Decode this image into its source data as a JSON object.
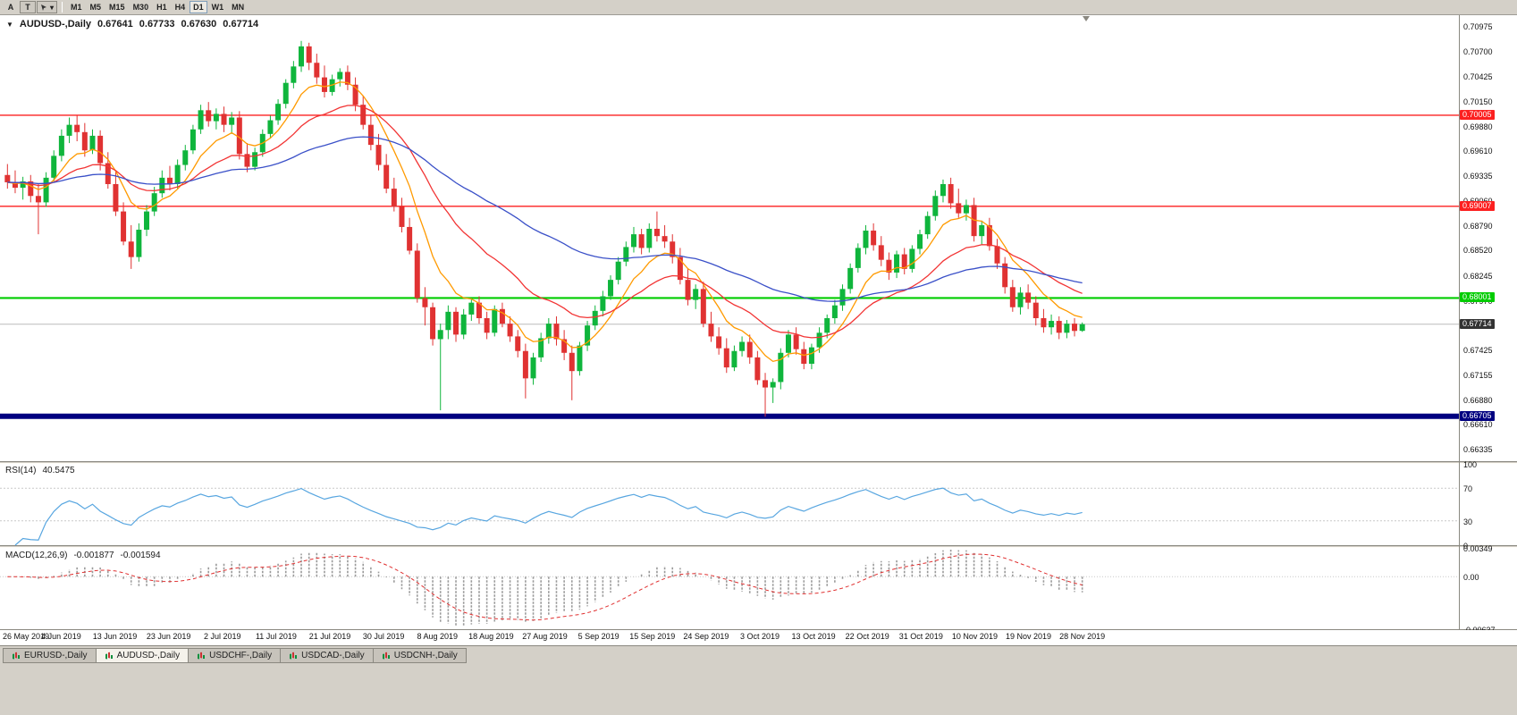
{
  "icons": {
    "title_marker": "▼",
    "dropdown_caret": "▾"
  },
  "toolbar": {
    "left_buttons": [
      {
        "label": "A",
        "name": "font-tool-button",
        "boxed": false
      },
      {
        "label": "T",
        "name": "text-tool-button",
        "boxed": true
      }
    ],
    "timeframes": [
      "M1",
      "M5",
      "M15",
      "M30",
      "H1",
      "H4",
      "D1",
      "W1",
      "MN"
    ],
    "active_timeframe": "D1"
  },
  "chart_data": {
    "type": "candlestick",
    "symbol_title": "AUDUSD-,Daily",
    "quote": {
      "open": "0.67641",
      "high": "0.67733",
      "low": "0.67630",
      "close": "0.67714"
    },
    "price_range": [
      0.66212,
      0.71102
    ],
    "price_ticks": [
      "0.70975",
      "0.70700",
      "0.70425",
      "0.70150",
      "0.69880",
      "0.69610",
      "0.69335",
      "0.69060",
      "0.68790",
      "0.68520",
      "0.68245",
      "0.67970",
      "0.67700",
      "0.67425",
      "0.67155",
      "0.66880",
      "0.66610",
      "0.66335"
    ],
    "levels": [
      {
        "value": 0.70005,
        "label": "0.70005",
        "color": "#fc2020",
        "width": 1.4,
        "type": "resistance"
      },
      {
        "value": 0.69007,
        "label": "0.69007",
        "color": "#fc2020",
        "width": 1.4,
        "type": "resistance"
      },
      {
        "value": 0.68001,
        "label": "0.68001",
        "color": "#00cc00",
        "width": 2.2,
        "type": "support"
      },
      {
        "value": 0.66705,
        "label": "0.66705",
        "color": "#000080",
        "width": 6,
        "type": "support"
      }
    ],
    "current_price": {
      "value": 0.67714,
      "label": "0.67714",
      "bg": "#333333"
    },
    "x_labels": [
      "26 May 2019",
      "4 Jun 2019",
      "13 Jun 2019",
      "23 Jun 2019",
      "2 Jul 2019",
      "11 Jul 2019",
      "21 Jul 2019",
      "30 Jul 2019",
      "8 Aug 2019",
      "18 Aug 2019",
      "27 Aug 2019",
      "5 Sep 2019",
      "15 Sep 2019",
      "24 Sep 2019",
      "3 Oct 2019",
      "13 Oct 2019",
      "22 Oct 2019",
      "31 Oct 2019",
      "10 Nov 2019",
      "19 Nov 2019",
      "28 Nov 2019"
    ],
    "colors": {
      "bull": "#0fb53c",
      "bear": "#e03232",
      "background": "#ffffff"
    },
    "moving_averages": [
      {
        "period": 8,
        "color": "#ff9a00",
        "name": "fast"
      },
      {
        "period": 21,
        "color": "#f23434",
        "name": "medium"
      },
      {
        "period": 55,
        "color": "#3a50c8",
        "name": "slow"
      }
    ],
    "candles": [
      [
        0.6935,
        0.6947,
        0.692,
        0.6927
      ],
      [
        0.6927,
        0.694,
        0.6915,
        0.6921
      ],
      [
        0.6921,
        0.6933,
        0.6908,
        0.6928
      ],
      [
        0.6928,
        0.6935,
        0.6905,
        0.6912
      ],
      [
        0.6912,
        0.6925,
        0.687,
        0.6905
      ],
      [
        0.6905,
        0.6938,
        0.69,
        0.6932
      ],
      [
        0.6932,
        0.6962,
        0.6928,
        0.6956
      ],
      [
        0.6956,
        0.6985,
        0.695,
        0.6978
      ],
      [
        0.6978,
        0.6998,
        0.697,
        0.699
      ],
      [
        0.699,
        0.7,
        0.6972,
        0.6982
      ],
      [
        0.6982,
        0.6992,
        0.6955,
        0.6962
      ],
      [
        0.6962,
        0.6985,
        0.6958,
        0.6978
      ],
      [
        0.6978,
        0.6984,
        0.694,
        0.6948
      ],
      [
        0.6948,
        0.696,
        0.692,
        0.6925
      ],
      [
        0.6925,
        0.694,
        0.689,
        0.6895
      ],
      [
        0.6895,
        0.6905,
        0.6858,
        0.6862
      ],
      [
        0.6862,
        0.688,
        0.6832,
        0.6845
      ],
      [
        0.6845,
        0.6882,
        0.684,
        0.6875
      ],
      [
        0.6875,
        0.6902,
        0.6868,
        0.6895
      ],
      [
        0.6895,
        0.6922,
        0.689,
        0.6915
      ],
      [
        0.6915,
        0.694,
        0.691,
        0.6932
      ],
      [
        0.6932,
        0.6945,
        0.6918,
        0.6925
      ],
      [
        0.6925,
        0.6952,
        0.692,
        0.6946
      ],
      [
        0.6946,
        0.6968,
        0.694,
        0.6962
      ],
      [
        0.6962,
        0.699,
        0.6958,
        0.6985
      ],
      [
        0.6985,
        0.7012,
        0.698,
        0.7006
      ],
      [
        0.7006,
        0.7015,
        0.6988,
        0.6994
      ],
      [
        0.6994,
        0.7008,
        0.6985,
        0.7002
      ],
      [
        0.7002,
        0.701,
        0.6982,
        0.699
      ],
      [
        0.699,
        0.7004,
        0.698,
        0.6998
      ],
      [
        0.6998,
        0.7005,
        0.6952,
        0.6958
      ],
      [
        0.6958,
        0.697,
        0.6938,
        0.6944
      ],
      [
        0.6944,
        0.6965,
        0.694,
        0.696
      ],
      [
        0.696,
        0.6985,
        0.6955,
        0.698
      ],
      [
        0.698,
        0.7,
        0.6975,
        0.6995
      ],
      [
        0.6995,
        0.7018,
        0.699,
        0.7013
      ],
      [
        0.7013,
        0.704,
        0.7008,
        0.7036
      ],
      [
        0.7036,
        0.706,
        0.703,
        0.7054
      ],
      [
        0.7054,
        0.7082,
        0.7048,
        0.7076
      ],
      [
        0.7076,
        0.708,
        0.705,
        0.7058
      ],
      [
        0.7058,
        0.7068,
        0.7035,
        0.7042
      ],
      [
        0.7042,
        0.7055,
        0.702,
        0.7026
      ],
      [
        0.7026,
        0.7045,
        0.7022,
        0.704
      ],
      [
        0.704,
        0.7052,
        0.7032,
        0.7048
      ],
      [
        0.7048,
        0.7055,
        0.7028,
        0.7034
      ],
      [
        0.7034,
        0.7042,
        0.7005,
        0.7012
      ],
      [
        0.7012,
        0.7022,
        0.6985,
        0.699
      ],
      [
        0.699,
        0.7,
        0.6962,
        0.6968
      ],
      [
        0.6968,
        0.698,
        0.694,
        0.6946
      ],
      [
        0.6946,
        0.6958,
        0.6915,
        0.692
      ],
      [
        0.692,
        0.6932,
        0.6895,
        0.69
      ],
      [
        0.69,
        0.691,
        0.6872,
        0.6878
      ],
      [
        0.6878,
        0.6888,
        0.6848,
        0.6852
      ],
      [
        0.6852,
        0.686,
        0.6795,
        0.68
      ],
      [
        0.68,
        0.6812,
        0.677,
        0.679
      ],
      [
        0.679,
        0.6795,
        0.6748,
        0.6755
      ],
      [
        0.6755,
        0.6772,
        0.6677,
        0.6765
      ],
      [
        0.6765,
        0.6792,
        0.6755,
        0.6785
      ],
      [
        0.6785,
        0.679,
        0.6752,
        0.676
      ],
      [
        0.676,
        0.6788,
        0.6755,
        0.6782
      ],
      [
        0.6782,
        0.68,
        0.6775,
        0.6795
      ],
      [
        0.6795,
        0.6802,
        0.6772,
        0.6778
      ],
      [
        0.6778,
        0.6785,
        0.6755,
        0.6762
      ],
      [
        0.6762,
        0.6792,
        0.6758,
        0.6788
      ],
      [
        0.6788,
        0.6795,
        0.6768,
        0.6772
      ],
      [
        0.6772,
        0.678,
        0.6752,
        0.6758
      ],
      [
        0.6758,
        0.6765,
        0.6735,
        0.6742
      ],
      [
        0.6742,
        0.675,
        0.669,
        0.6712
      ],
      [
        0.6712,
        0.674,
        0.6705,
        0.6735
      ],
      [
        0.6735,
        0.6762,
        0.673,
        0.6756
      ],
      [
        0.6756,
        0.6778,
        0.675,
        0.6772
      ],
      [
        0.6772,
        0.678,
        0.6748,
        0.6755
      ],
      [
        0.6755,
        0.6765,
        0.6732,
        0.674
      ],
      [
        0.674,
        0.6748,
        0.6688,
        0.672
      ],
      [
        0.672,
        0.6752,
        0.6715,
        0.6748
      ],
      [
        0.6748,
        0.6775,
        0.6742,
        0.677
      ],
      [
        0.677,
        0.6792,
        0.6765,
        0.6786
      ],
      [
        0.6786,
        0.6808,
        0.678,
        0.6802
      ],
      [
        0.6802,
        0.6825,
        0.6798,
        0.682
      ],
      [
        0.682,
        0.6845,
        0.6815,
        0.684
      ],
      [
        0.684,
        0.6862,
        0.6835,
        0.6856
      ],
      [
        0.6856,
        0.6878,
        0.685,
        0.687
      ],
      [
        0.687,
        0.6876,
        0.6848,
        0.6855
      ],
      [
        0.6855,
        0.6882,
        0.685,
        0.6876
      ],
      [
        0.6876,
        0.6895,
        0.6862,
        0.6868
      ],
      [
        0.6868,
        0.688,
        0.6855,
        0.6862
      ],
      [
        0.6862,
        0.687,
        0.6838,
        0.6845
      ],
      [
        0.6845,
        0.6855,
        0.6815,
        0.682
      ],
      [
        0.682,
        0.6832,
        0.6792,
        0.6798
      ],
      [
        0.6798,
        0.6815,
        0.6788,
        0.681
      ],
      [
        0.681,
        0.6818,
        0.6768,
        0.6772
      ],
      [
        0.6772,
        0.6785,
        0.6752,
        0.6758
      ],
      [
        0.6758,
        0.6768,
        0.6738,
        0.6745
      ],
      [
        0.6745,
        0.6756,
        0.6718,
        0.6724
      ],
      [
        0.6724,
        0.6748,
        0.672,
        0.6742
      ],
      [
        0.6742,
        0.6758,
        0.6736,
        0.6752
      ],
      [
        0.6752,
        0.676,
        0.6728,
        0.6735
      ],
      [
        0.6735,
        0.6742,
        0.6705,
        0.671
      ],
      [
        0.671,
        0.6718,
        0.667,
        0.6702
      ],
      [
        0.6702,
        0.6712,
        0.6685,
        0.6708
      ],
      [
        0.6708,
        0.6745,
        0.67,
        0.674
      ],
      [
        0.674,
        0.6765,
        0.6735,
        0.676
      ],
      [
        0.676,
        0.6768,
        0.6738,
        0.6744
      ],
      [
        0.6744,
        0.6752,
        0.6722,
        0.6728
      ],
      [
        0.6728,
        0.675,
        0.6722,
        0.6746
      ],
      [
        0.6746,
        0.6768,
        0.674,
        0.6762
      ],
      [
        0.6762,
        0.6782,
        0.6756,
        0.6778
      ],
      [
        0.6778,
        0.6798,
        0.6772,
        0.6792
      ],
      [
        0.6792,
        0.6815,
        0.6786,
        0.681
      ],
      [
        0.681,
        0.6838,
        0.6805,
        0.6833
      ],
      [
        0.6833,
        0.686,
        0.6828,
        0.6855
      ],
      [
        0.6855,
        0.688,
        0.6848,
        0.6874
      ],
      [
        0.6874,
        0.6882,
        0.6852,
        0.6858
      ],
      [
        0.6858,
        0.6868,
        0.6835,
        0.6842
      ],
      [
        0.6842,
        0.685,
        0.682,
        0.6828
      ],
      [
        0.6828,
        0.6852,
        0.6822,
        0.6848
      ],
      [
        0.6848,
        0.6855,
        0.6826,
        0.6832
      ],
      [
        0.6832,
        0.6858,
        0.6828,
        0.6854
      ],
      [
        0.6854,
        0.6875,
        0.6848,
        0.687
      ],
      [
        0.687,
        0.6895,
        0.6865,
        0.689
      ],
      [
        0.689,
        0.6918,
        0.6885,
        0.6912
      ],
      [
        0.6912,
        0.693,
        0.6905,
        0.6925
      ],
      [
        0.6925,
        0.6932,
        0.6898,
        0.6904
      ],
      [
        0.6904,
        0.692,
        0.6888,
        0.6893
      ],
      [
        0.6893,
        0.6908,
        0.6885,
        0.6902
      ],
      [
        0.6902,
        0.691,
        0.6862,
        0.6868
      ],
      [
        0.6868,
        0.6885,
        0.6858,
        0.688
      ],
      [
        0.688,
        0.6888,
        0.6852,
        0.6857
      ],
      [
        0.6857,
        0.6865,
        0.6832,
        0.6838
      ],
      [
        0.6838,
        0.6845,
        0.6805,
        0.6812
      ],
      [
        0.6812,
        0.682,
        0.6785,
        0.679
      ],
      [
        0.679,
        0.6812,
        0.6782,
        0.6806
      ],
      [
        0.6806,
        0.6815,
        0.6788,
        0.6795
      ],
      [
        0.6795,
        0.6802,
        0.677,
        0.6778
      ],
      [
        0.6778,
        0.6788,
        0.6762,
        0.6768
      ],
      [
        0.6768,
        0.6782,
        0.676,
        0.6775
      ],
      [
        0.6775,
        0.678,
        0.6755,
        0.6762
      ],
      [
        0.6762,
        0.6776,
        0.6756,
        0.6772
      ],
      [
        0.6772,
        0.6778,
        0.6758,
        0.6764
      ],
      [
        0.67641,
        0.67733,
        0.6763,
        0.67714
      ]
    ],
    "indicators": {
      "rsi": {
        "label": "RSI(14)",
        "value": "40.5475",
        "period": 14,
        "levels": [
          70,
          30
        ],
        "ticks": [
          "100",
          "70",
          "30",
          "0"
        ],
        "range": [
          0,
          100
        ],
        "color": "#58a6e0"
      },
      "macd": {
        "label": "MACD(12,26,9)",
        "value_main": "-0.001877",
        "value_signal": "-0.001594",
        "fast": 12,
        "slow": 26,
        "signal": 9,
        "ticks": [
          "0.00349",
          "0.00",
          "-0.00637"
        ],
        "range": [
          -0.00637,
          0.00349
        ],
        "histogram_color": "#9a9a9a",
        "signal_color": "#e03030"
      }
    }
  },
  "tabs": [
    {
      "label": "EURUSD-,Daily",
      "active": false
    },
    {
      "label": "AUDUSD-,Daily",
      "active": true
    },
    {
      "label": "USDCHF-,Daily",
      "active": false
    },
    {
      "label": "USDCAD-,Daily",
      "active": false
    },
    {
      "label": "USDCNH-,Daily",
      "active": false
    }
  ]
}
